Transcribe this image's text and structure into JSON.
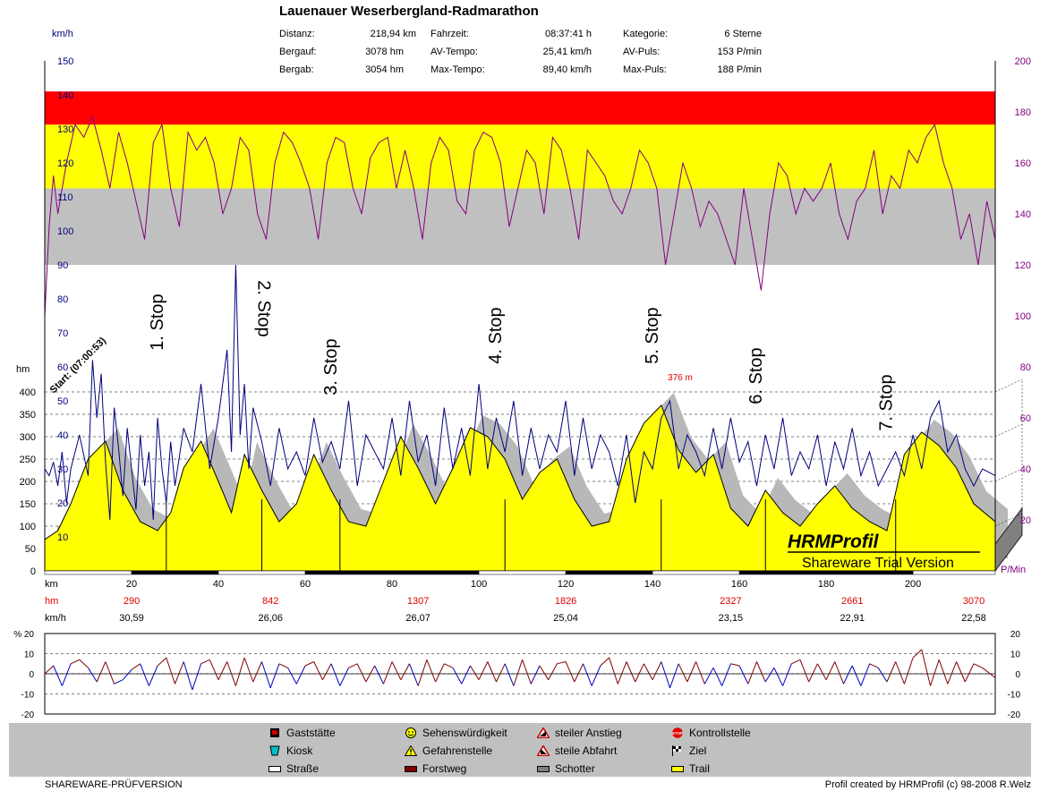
{
  "title": "Lauenauer Weserbergland-Radmarathon",
  "stats": [
    {
      "label": "Distanz:",
      "value": "218,94 km"
    },
    {
      "label": "Bergauf:",
      "value": "3078 hm"
    },
    {
      "label": "Bergab:",
      "value": "3054 hm"
    },
    {
      "label": "Fahrzeit:",
      "value": "08:37:41 h"
    },
    {
      "label": "AV-Tempo:",
      "value": "25,41 km/h"
    },
    {
      "label": "Max-Tempo:",
      "value": "89,40 km/h"
    },
    {
      "label": "Kategorie:",
      "value": "6 Sterne"
    },
    {
      "label": "AV-Puls:",
      "value": "153 P/min"
    },
    {
      "label": "Max-Puls:",
      "value": "188 P/min"
    }
  ],
  "chart_data": {
    "type": "line",
    "x_unit": "km",
    "x_range": [
      0,
      218.94
    ],
    "x_ticks": [
      20,
      40,
      60,
      80,
      100,
      120,
      140,
      160,
      180,
      200
    ],
    "speed_axis": {
      "label": "km/h",
      "range": [
        0,
        150
      ],
      "ticks": [
        10,
        20,
        30,
        40,
        50,
        60,
        70,
        80,
        90,
        100,
        110,
        120,
        130,
        140,
        150
      ]
    },
    "altitude_axis": {
      "label": "hm",
      "range": [
        0,
        420
      ],
      "ticks": [
        0,
        50,
        100,
        150,
        200,
        250,
        300,
        350,
        400
      ]
    },
    "pulse_axis": {
      "label": "P/Min",
      "range": [
        0,
        200
      ],
      "ticks": [
        20,
        40,
        60,
        80,
        100,
        120,
        140,
        160,
        180,
        200
      ]
    },
    "pulse_zones": [
      {
        "from": 120,
        "to": 150,
        "color": "#c0c0c0"
      },
      {
        "from": 150,
        "to": 175,
        "color": "#ffff00"
      },
      {
        "from": 175,
        "to": 188,
        "color": "#ff0000"
      }
    ],
    "altitude_profile": {
      "km": [
        0,
        3,
        6,
        10,
        14,
        18,
        22,
        26,
        29,
        32,
        36,
        40,
        43,
        46,
        50,
        54,
        58,
        62,
        66,
        70,
        74,
        78,
        82,
        86,
        90,
        94,
        98,
        102,
        106,
        110,
        114,
        118,
        122,
        126,
        130,
        134,
        138,
        142,
        146,
        150,
        154,
        158,
        162,
        166,
        170,
        174,
        178,
        182,
        186,
        190,
        194,
        198,
        202,
        206,
        210,
        214,
        218.94
      ],
      "hm": [
        70,
        90,
        150,
        250,
        290,
        180,
        110,
        90,
        130,
        230,
        290,
        200,
        130,
        260,
        180,
        110,
        150,
        260,
        180,
        110,
        100,
        200,
        300,
        230,
        150,
        230,
        320,
        300,
        250,
        160,
        220,
        250,
        160,
        100,
        110,
        250,
        330,
        370,
        270,
        220,
        260,
        140,
        100,
        180,
        130,
        100,
        150,
        190,
        140,
        110,
        90,
        260,
        310,
        280,
        230,
        150,
        110
      ]
    },
    "pulse_series": {
      "km": [
        0,
        1,
        2,
        3,
        5,
        7,
        9,
        11,
        13,
        15,
        17,
        19,
        21,
        23,
        25,
        27,
        29,
        31,
        33,
        35,
        37,
        39,
        41,
        43,
        45,
        47,
        49,
        51,
        53,
        55,
        57,
        59,
        61,
        63,
        65,
        67,
        69,
        71,
        73,
        75,
        77,
        79,
        81,
        83,
        85,
        87,
        89,
        91,
        93,
        95,
        97,
        99,
        101,
        103,
        105,
        107,
        109,
        111,
        113,
        115,
        117,
        119,
        121,
        123,
        125,
        127,
        129,
        131,
        133,
        135,
        137,
        139,
        141,
        143,
        145,
        147,
        149,
        151,
        153,
        155,
        157,
        159,
        161,
        163,
        165,
        167,
        169,
        171,
        173,
        175,
        177,
        179,
        181,
        183,
        185,
        187,
        189,
        191,
        193,
        195,
        197,
        199,
        201,
        203,
        205,
        207,
        209,
        211,
        213,
        215,
        217,
        218.94
      ],
      "bpm": [
        100,
        135,
        155,
        140,
        160,
        175,
        170,
        178,
        165,
        150,
        172,
        160,
        145,
        130,
        168,
        175,
        150,
        135,
        172,
        165,
        170,
        160,
        140,
        150,
        170,
        165,
        140,
        130,
        160,
        172,
        168,
        160,
        150,
        130,
        160,
        170,
        168,
        150,
        140,
        162,
        168,
        170,
        150,
        165,
        150,
        130,
        160,
        170,
        165,
        145,
        140,
        165,
        172,
        170,
        160,
        135,
        150,
        165,
        160,
        140,
        170,
        165,
        150,
        130,
        165,
        160,
        155,
        145,
        140,
        150,
        165,
        160,
        150,
        120,
        140,
        160,
        150,
        135,
        145,
        140,
        130,
        120,
        150,
        130,
        110,
        140,
        160,
        155,
        140,
        150,
        145,
        150,
        160,
        140,
        130,
        145,
        150,
        165,
        140,
        155,
        150,
        165,
        160,
        170,
        175,
        160,
        150,
        130,
        140,
        120,
        145,
        130
      ]
    },
    "speed_series": {
      "km": [
        0,
        1,
        2,
        3,
        4,
        5,
        6,
        8,
        10,
        11,
        12,
        13,
        14,
        15,
        16,
        17,
        18,
        19,
        20,
        21,
        22,
        23,
        24,
        25,
        26,
        27,
        28,
        29,
        30,
        32,
        34,
        36,
        38,
        40,
        42,
        43,
        44,
        45,
        46,
        47,
        48,
        50,
        52,
        54,
        56,
        58,
        60,
        62,
        64,
        66,
        68,
        70,
        72,
        74,
        76,
        78,
        80,
        82,
        84,
        86,
        88,
        90,
        92,
        94,
        96,
        98,
        100,
        102,
        104,
        106,
        108,
        110,
        112,
        114,
        116,
        118,
        120,
        122,
        124,
        126,
        128,
        130,
        132,
        134,
        136,
        138,
        140,
        142,
        144,
        146,
        148,
        150,
        152,
        154,
        156,
        158,
        160,
        162,
        164,
        166,
        168,
        170,
        172,
        174,
        176,
        178,
        180,
        182,
        184,
        186,
        188,
        190,
        192,
        194,
        196,
        198,
        200,
        202,
        204,
        206,
        208,
        210,
        212,
        214,
        216,
        218.94
      ],
      "kmh": [
        30,
        28,
        32,
        25,
        35,
        20,
        30,
        40,
        28,
        62,
        45,
        58,
        32,
        15,
        48,
        36,
        22,
        42,
        30,
        18,
        40,
        25,
        35,
        15,
        45,
        30,
        20,
        38,
        25,
        42,
        35,
        55,
        30,
        45,
        65,
        35,
        90,
        40,
        55,
        30,
        48,
        38,
        25,
        42,
        30,
        35,
        28,
        45,
        32,
        38,
        30,
        50,
        25,
        40,
        35,
        30,
        45,
        28,
        50,
        32,
        40,
        25,
        48,
        30,
        42,
        28,
        55,
        30,
        45,
        35,
        50,
        28,
        42,
        30,
        40,
        35,
        50,
        28,
        45,
        30,
        40,
        35,
        25,
        40,
        20,
        35,
        30,
        45,
        50,
        30,
        40,
        35,
        28,
        42,
        30,
        45,
        32,
        38,
        25,
        40,
        30,
        45,
        28,
        35,
        30,
        40,
        25,
        38,
        30,
        42,
        28,
        35,
        25,
        30,
        35,
        28,
        40,
        30,
        45,
        50,
        35,
        40,
        30,
        25,
        30,
        28
      ]
    },
    "track_surface": [
      {
        "from": 0,
        "to": 20,
        "type": "Straße"
      },
      {
        "from": 20,
        "to": 40,
        "type": "Forstweg"
      },
      {
        "from": 40,
        "to": 60,
        "type": "Straße"
      },
      {
        "from": 60,
        "to": 100,
        "type": "Forstweg"
      },
      {
        "from": 100,
        "to": 120,
        "type": "Straße"
      },
      {
        "from": 120,
        "to": 140,
        "type": "Forstweg"
      },
      {
        "from": 140,
        "to": 160,
        "type": "Straße"
      },
      {
        "from": 160,
        "to": 200,
        "type": "Forstweg"
      },
      {
        "from": 200,
        "to": 218.94,
        "type": "Straße"
      }
    ],
    "stops": [
      {
        "km": 28,
        "label": "1. Stop"
      },
      {
        "km": 50,
        "label": "2. Stop"
      },
      {
        "km": 68,
        "label": "3. Stop"
      },
      {
        "km": 106,
        "label": "4. Stop"
      },
      {
        "km": 142,
        "label": "5. Stop"
      },
      {
        "km": 166,
        "label": "6. Stop"
      },
      {
        "km": 196,
        "label": "7. Stop"
      }
    ],
    "start_label": "Start: (07:00:53)",
    "max_altitude_label": "376 m",
    "summary_rows": {
      "row_km_label": "km",
      "row_hm_label": "hm",
      "row_kmh_label": "km/h",
      "hm_values": [
        {
          "km": 20,
          "v": "290"
        },
        {
          "km": 52,
          "v": "842"
        },
        {
          "km": 86,
          "v": "1307"
        },
        {
          "km": 120,
          "v": "1826"
        },
        {
          "km": 158,
          "v": "2327"
        },
        {
          "km": 186,
          "v": "2661"
        },
        {
          "km": 214,
          "v": "3070"
        }
      ],
      "kmh_values": [
        {
          "km": 20,
          "v": "30,59"
        },
        {
          "km": 52,
          "v": "26,06"
        },
        {
          "km": 86,
          "v": "26,07"
        },
        {
          "km": 120,
          "v": "25,04"
        },
        {
          "km": 158,
          "v": "23,15"
        },
        {
          "km": 186,
          "v": "22,91"
        },
        {
          "km": 214,
          "v": "22,58"
        }
      ]
    },
    "grade_axis": {
      "label": "% 20",
      "range": [
        -20,
        20
      ],
      "ticks": [
        -20,
        -10,
        0,
        10,
        20
      ]
    },
    "grade_series": {
      "km": [
        0,
        2,
        4,
        6,
        8,
        10,
        12,
        14,
        16,
        18,
        20,
        22,
        24,
        26,
        28,
        30,
        32,
        34,
        36,
        38,
        40,
        42,
        44,
        46,
        48,
        50,
        52,
        54,
        56,
        58,
        60,
        62,
        64,
        66,
        68,
        70,
        72,
        74,
        76,
        78,
        80,
        82,
        84,
        86,
        88,
        90,
        92,
        94,
        96,
        98,
        100,
        102,
        104,
        106,
        108,
        110,
        112,
        114,
        116,
        118,
        120,
        122,
        124,
        126,
        128,
        130,
        132,
        134,
        136,
        138,
        140,
        142,
        144,
        146,
        148,
        150,
        152,
        154,
        156,
        158,
        160,
        162,
        164,
        166,
        168,
        170,
        172,
        174,
        176,
        178,
        180,
        182,
        184,
        186,
        188,
        190,
        192,
        194,
        196,
        198,
        200,
        202,
        204,
        206,
        208,
        210,
        212,
        214,
        216,
        218.94
      ],
      "pct": [
        0,
        4,
        -6,
        5,
        7,
        3,
        -4,
        6,
        -5,
        -3,
        2,
        5,
        -6,
        4,
        8,
        -5,
        6,
        -8,
        5,
        7,
        -3,
        6,
        -6,
        8,
        -4,
        6,
        -7,
        5,
        3,
        -5,
        4,
        6,
        -3,
        5,
        -6,
        3,
        5,
        -4,
        4,
        -5,
        6,
        -3,
        5,
        -6,
        7,
        -4,
        5,
        3,
        -5,
        4,
        -3,
        6,
        -4,
        5,
        -6,
        7,
        -5,
        4,
        -3,
        5,
        6,
        -4,
        5,
        -6,
        4,
        8,
        -5,
        6,
        -4,
        5,
        -3,
        6,
        -7,
        5,
        -4,
        6,
        -5,
        3,
        -6,
        5,
        4,
        -5,
        6,
        -4,
        3,
        -6,
        5,
        7,
        -4,
        5,
        -3,
        6,
        -5,
        4,
        -6,
        5,
        3,
        -4,
        6,
        -5,
        8,
        12,
        -6,
        7,
        -5,
        6,
        -4,
        5,
        3,
        -2
      ]
    },
    "watermarks": [
      "HRMProfil",
      "Shareware Trial  Version"
    ]
  },
  "legend": [
    {
      "label": "Gaststätte",
      "icon": "glass-icon"
    },
    {
      "label": "Kiosk",
      "icon": "cup-icon"
    },
    {
      "label": "Straße",
      "icon": "road-swatch",
      "color": "#ffffff"
    },
    {
      "label": "Sehenswürdigkeit",
      "icon": "smiley-icon"
    },
    {
      "label": "Gefahrenstelle",
      "icon": "warning-icon"
    },
    {
      "label": "Forstweg",
      "icon": "forest-swatch",
      "color": "#800000"
    },
    {
      "label": "steiler Anstieg",
      "icon": "steep-up-icon"
    },
    {
      "label": "steile Abfahrt",
      "icon": "steep-down-icon"
    },
    {
      "label": "Schotter",
      "icon": "gravel-swatch",
      "color": "#808080"
    },
    {
      "label": "Kontrollstelle",
      "icon": "stop-sign-icon"
    },
    {
      "label": "Ziel",
      "icon": "finish-flag-icon"
    },
    {
      "label": "Trail",
      "icon": "trail-swatch",
      "color": "#ffff00"
    }
  ],
  "footer": {
    "left": "SHAREWARE-PRÜFVERSION",
    "right": "Profil created by HRMProfil (c) 98-2008 R.Welz"
  }
}
